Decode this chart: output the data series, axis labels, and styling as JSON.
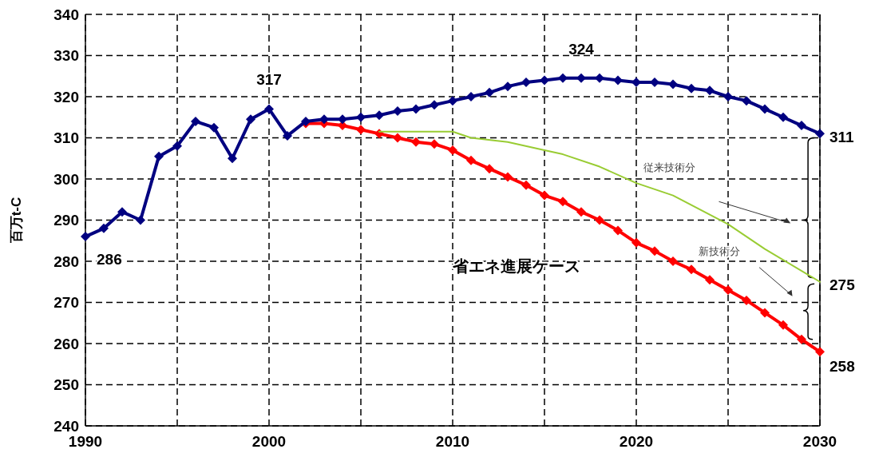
{
  "chart_data": {
    "type": "line",
    "ylabel": "百万t-C",
    "x": [
      1990,
      1991,
      1992,
      1993,
      1994,
      1995,
      1996,
      1997,
      1998,
      1999,
      2000,
      2001,
      2002,
      2003,
      2004,
      2005,
      2006,
      2007,
      2008,
      2009,
      2010,
      2011,
      2012,
      2013,
      2014,
      2015,
      2016,
      2017,
      2018,
      2019,
      2020,
      2021,
      2022,
      2023,
      2024,
      2025,
      2026,
      2027,
      2028,
      2029,
      2030
    ],
    "series": [
      {
        "color": "#000080",
        "marker": "diamond",
        "values": [
          286,
          288,
          292,
          290,
          305.5,
          308,
          314,
          312.5,
          305,
          314.5,
          317,
          310.5,
          314,
          314.5,
          314.5,
          315,
          315.5,
          316.5,
          317,
          318,
          319,
          320,
          321,
          322.5,
          323.5,
          324,
          324.5,
          324.5,
          324.5,
          324,
          323.5,
          323.5,
          323,
          322,
          321.5,
          320,
          319,
          317,
          315,
          313,
          311
        ]
      },
      {
        "color": "#99cc33",
        "marker": "none",
        "x": [
          2006,
          2010,
          2011,
          2013,
          2015,
          2016,
          2018,
          2020,
          2022,
          2025,
          2027,
          2030
        ],
        "values": [
          311.5,
          311.5,
          310,
          309,
          307,
          306,
          303,
          299,
          296,
          289,
          283,
          275
        ]
      },
      {
        "color": "#ff0000",
        "marker": "diamond",
        "x": [
          2002,
          2003,
          2004,
          2005,
          2006,
          2007,
          2008,
          2009,
          2010,
          2011,
          2012,
          2013,
          2014,
          2015,
          2016,
          2017,
          2018,
          2019,
          2020,
          2021,
          2022,
          2023,
          2024,
          2025,
          2026,
          2027,
          2028,
          2029,
          2030
        ],
        "values": [
          313.5,
          313.5,
          313,
          312,
          311,
          310,
          309,
          308.5,
          307,
          304.5,
          302.5,
          300.5,
          298.5,
          296,
          294.5,
          292,
          290,
          287.5,
          284.5,
          282.5,
          280,
          278,
          275.5,
          273,
          270.5,
          267.5,
          264.5,
          261,
          258
        ]
      }
    ],
    "xlim": [
      1990,
      2030
    ],
    "xticks": [
      1990,
      {
        "value": 1995,
        "label": null
      },
      2000,
      {
        "value": 2005,
        "label": null
      },
      2010,
      {
        "value": 2015,
        "label": null
      },
      2020,
      {
        "value": 2025,
        "label": null
      },
      2030
    ],
    "ylim": [
      240,
      340
    ],
    "yticks": [
      240,
      250,
      260,
      270,
      280,
      290,
      300,
      310,
      320,
      330,
      340
    ],
    "grid": true,
    "line_style": "solid",
    "annotations": [
      {
        "text": "286",
        "x": 1990,
        "y": 286
      },
      {
        "text": "317",
        "x": 2000,
        "y": 317
      },
      {
        "text": "324",
        "x": 2017,
        "y": 324.5
      },
      {
        "text": "311",
        "x": 2030,
        "y": 311
      },
      {
        "text": "275",
        "x": 2030,
        "y": 275
      },
      {
        "text": "258",
        "x": 2030,
        "y": 258
      },
      "省エネ進展ケース",
      "従来技術分",
      "新技術分"
    ]
  }
}
